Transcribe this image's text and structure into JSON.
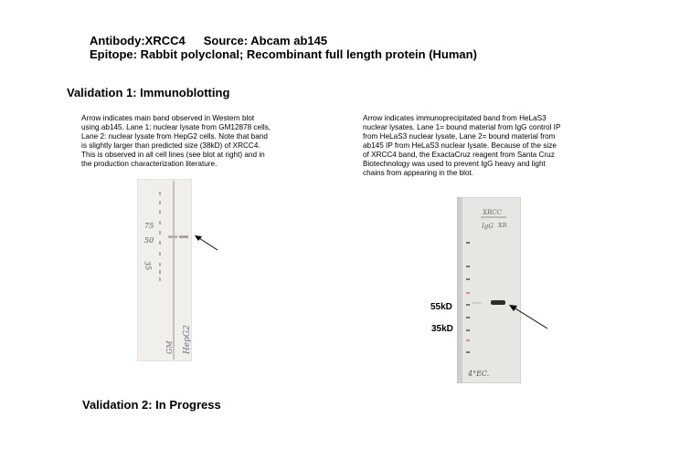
{
  "header": {
    "antibody": "Antibody:XRCC4",
    "source": "Source: Abcam ab145",
    "epitope": "Epitope: Rabbit polyclonal; Recombinant full length protein (Human)"
  },
  "validation1": {
    "title": "Validation 1: Immunoblotting",
    "left_text": [
      "Arrow indicates main band observed in Western blot",
      "using ab145. Lane 1: nuclear lysate from GM12878 cells,",
      "Lane 2: nuclear lysate from HepG2 cells.  Note that band",
      "is slightly larger than predicted size (38kD) of XRCC4.",
      "This is observed in all cell lines (see blot at right) and in",
      "the production characterization literature."
    ],
    "right_text": [
      "Arrow indicates immunoprecipitated band from HeLaS3",
      "nuclear lysates.  Lane 1= bound material from IgG control IP",
      "from HeLaS3 nuclear lysate, Lane 2= bound material from",
      "ab145 IP from HeLaS3 nuclear lysate.  Because of the size",
      "of XRCC4 band, the ExactaCruz reagent from Santa Cruz",
      "Biotechnology was used to prevent IgG heavy and light",
      "chains from appearing in the blot."
    ],
    "left_blot": {
      "marker_75": "75",
      "marker_50": "50",
      "marker_35": "35",
      "lane1": "GM",
      "lane2": "HepG2"
    },
    "right_blot": {
      "label_top": "XRCC",
      "lane1": "IgG",
      "lane2": "XR",
      "bottom_note": "4°EC.",
      "mw_55": "55kD",
      "mw_35": "35kD"
    }
  },
  "validation2": {
    "title": "Validation 2: In Progress"
  }
}
